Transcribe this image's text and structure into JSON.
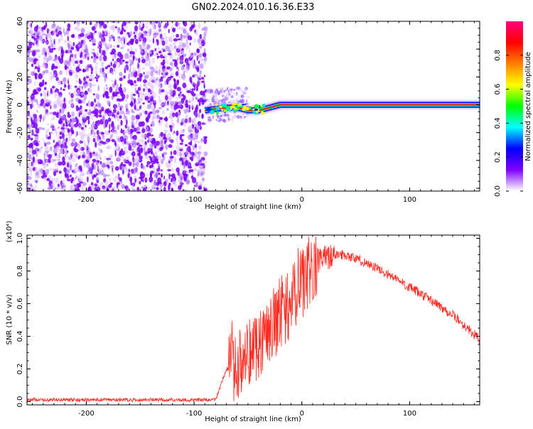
{
  "title": "GN02.2024.010.16.36.E33",
  "chart_data": [
    {
      "type": "heatmap",
      "xlabel": "Height of straight line (km)",
      "ylabel": "Frequency (Hz)",
      "xlim": [
        -255,
        165
      ],
      "ylim": [
        -62,
        60
      ],
      "xticks": [
        -200,
        -100,
        0,
        100
      ],
      "yticks": [
        -60,
        -40,
        -20,
        0,
        20,
        40,
        60
      ],
      "grid": false,
      "noise_region_x": [
        -255,
        -89
      ],
      "signal_track": {
        "x": [
          -90,
          -80,
          -70,
          -60,
          -50,
          -40,
          -30,
          -20,
          -10,
          0,
          20,
          50,
          100,
          165
        ],
        "frequency": [
          -4,
          -3,
          -2,
          -2,
          -4,
          -4,
          -2,
          0,
          0,
          0,
          0,
          0,
          0,
          0
        ]
      },
      "colorbar": {
        "label": "Normalized spectral amplitude",
        "range": [
          0,
          1
        ],
        "ticks": [
          "0.0",
          "0.2",
          "0.4",
          "0.6",
          "0.8"
        ],
        "colors": [
          "#ffffff",
          "#8000ff",
          "#0000ff",
          "#00ffff",
          "#00ff00",
          "#ffff00",
          "#ff8000",
          "#ff0000",
          "#ff0080"
        ]
      }
    },
    {
      "type": "line",
      "xlabel": "Height of straight line (km)",
      "ylabel": "SNR (10 * v/v)",
      "scale_label": "(x10⁴)",
      "xlim": [
        -255,
        165
      ],
      "ylim": [
        -0.02,
        1.02
      ],
      "xticks": [
        -200,
        -100,
        0,
        100
      ],
      "yticks": [
        "0.0",
        "0.2",
        "0.4",
        "0.6",
        "0.8",
        "1.0"
      ],
      "grid": false,
      "color": "#ff2a20",
      "series_envelope": {
        "x": [
          -255,
          -80,
          -70,
          -60,
          -50,
          -40,
          -30,
          -20,
          -10,
          0,
          10,
          20,
          30,
          40,
          60,
          80,
          100,
          120,
          140,
          165
        ],
        "y": [
          0.01,
          0.01,
          0.2,
          0.2,
          0.3,
          0.36,
          0.45,
          0.52,
          0.6,
          0.72,
          0.82,
          0.88,
          0.9,
          0.9,
          0.85,
          0.78,
          0.7,
          0.62,
          0.53,
          0.38
        ]
      }
    }
  ]
}
